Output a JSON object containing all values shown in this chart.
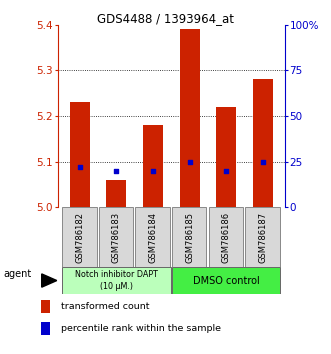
{
  "title": "GDS4488 / 1393964_at",
  "samples": [
    "GSM786182",
    "GSM786183",
    "GSM786184",
    "GSM786185",
    "GSM786186",
    "GSM786187"
  ],
  "bar_values": [
    5.23,
    5.06,
    5.18,
    5.39,
    5.22,
    5.28
  ],
  "bar_base": 5.0,
  "percentile_values": [
    22,
    20,
    20,
    25,
    20,
    25
  ],
  "bar_color": "#cc2200",
  "percentile_color": "#0000cc",
  "ylim": [
    5.0,
    5.4
  ],
  "ylim_right": [
    0,
    100
  ],
  "yticks_left": [
    5.0,
    5.1,
    5.2,
    5.3,
    5.4
  ],
  "yticks_right": [
    0,
    25,
    50,
    75,
    100
  ],
  "ytick_labels_right": [
    "0",
    "25",
    "50",
    "75",
    "100%"
  ],
  "group1_label": "Notch inhibitor DAPT\n(10 μM.)",
  "group2_label": "DMSO control",
  "group1_color": "#bbffbb",
  "group2_color": "#44ee44",
  "group1_indices": [
    0,
    1,
    2
  ],
  "group2_indices": [
    3,
    4,
    5
  ],
  "legend_bar_label": "transformed count",
  "legend_pct_label": "percentile rank within the sample",
  "agent_label": "agent",
  "bar_width": 0.55,
  "bg_color": "#d8d8d8"
}
